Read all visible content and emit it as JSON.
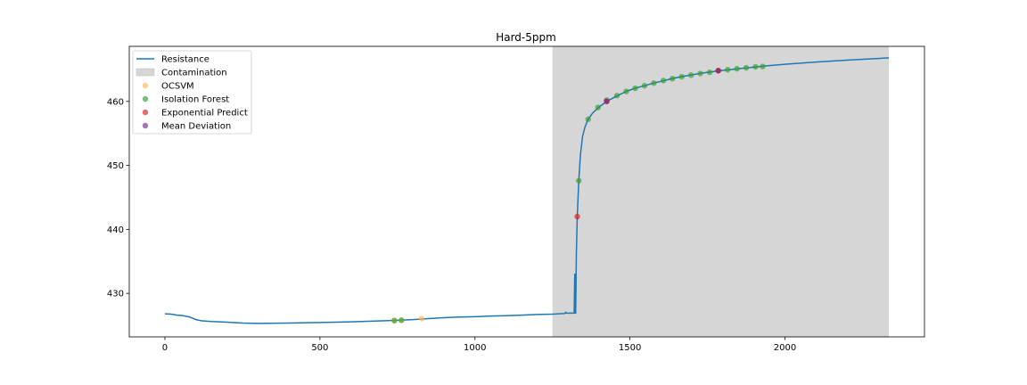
{
  "chart_data": {
    "type": "line",
    "title": "Hard-5ppm",
    "xlabel": "",
    "ylabel": "",
    "xlim": [
      -115,
      2450
    ],
    "ylim": [
      423.2,
      468.6
    ],
    "xticks": [
      0,
      500,
      1000,
      1500,
      2000
    ],
    "yticks": [
      430,
      440,
      450,
      460
    ],
    "grid": false,
    "legend_position": "top-left",
    "contamination": {
      "label": "Contamination",
      "x_start": 1250,
      "x_end": 2335,
      "color": "#d6d6d6"
    },
    "series": [
      {
        "name": "Resistance",
        "type": "line",
        "color": "#1f77b4",
        "points": [
          [
            0,
            426.8
          ],
          [
            20,
            426.75
          ],
          [
            40,
            426.6
          ],
          [
            60,
            426.5
          ],
          [
            80,
            426.3
          ],
          [
            100,
            425.9
          ],
          [
            120,
            425.7
          ],
          [
            150,
            425.6
          ],
          [
            200,
            425.5
          ],
          [
            250,
            425.35
          ],
          [
            300,
            425.3
          ],
          [
            400,
            425.35
          ],
          [
            500,
            425.45
          ],
          [
            600,
            425.55
          ],
          [
            700,
            425.7
          ],
          [
            750,
            425.8
          ],
          [
            800,
            425.9
          ],
          [
            850,
            426.05
          ],
          [
            900,
            426.2
          ],
          [
            950,
            426.3
          ],
          [
            1000,
            426.35
          ],
          [
            1050,
            426.45
          ],
          [
            1100,
            426.5
          ],
          [
            1150,
            426.6
          ],
          [
            1200,
            426.7
          ],
          [
            1250,
            426.75
          ],
          [
            1290,
            426.85
          ],
          [
            1292,
            427.05
          ],
          [
            1295,
            426.9
          ],
          [
            1300,
            426.9
          ],
          [
            1320,
            426.9
          ],
          [
            1322,
            433.0
          ],
          [
            1323,
            426.9
          ],
          [
            1325,
            426.9
          ],
          [
            1327,
            436.0
          ],
          [
            1330,
            442.0
          ],
          [
            1335,
            447.6
          ],
          [
            1340,
            451.5
          ],
          [
            1347,
            454.5
          ],
          [
            1355,
            456.0
          ],
          [
            1365,
            457.2
          ],
          [
            1380,
            458.2
          ],
          [
            1400,
            459.1
          ],
          [
            1425,
            460.0
          ],
          [
            1460,
            460.9
          ],
          [
            1490,
            461.6
          ],
          [
            1520,
            462.1
          ],
          [
            1550,
            462.5
          ],
          [
            1580,
            462.9
          ],
          [
            1610,
            463.25
          ],
          [
            1640,
            463.6
          ],
          [
            1670,
            463.9
          ],
          [
            1700,
            464.15
          ],
          [
            1730,
            464.4
          ],
          [
            1760,
            464.6
          ],
          [
            1790,
            464.8
          ],
          [
            1820,
            464.95
          ],
          [
            1850,
            465.1
          ],
          [
            1880,
            465.25
          ],
          [
            1910,
            465.4
          ],
          [
            1940,
            465.55
          ],
          [
            2000,
            465.8
          ],
          [
            2100,
            466.15
          ],
          [
            2200,
            466.45
          ],
          [
            2300,
            466.7
          ],
          [
            2335,
            466.8
          ]
        ]
      },
      {
        "name": "OCSVM",
        "type": "scatter",
        "color": "#ffb84d",
        "points": [
          [
            740,
            425.75
          ],
          [
            763,
            425.8
          ],
          [
            828,
            426.05
          ],
          [
            1425,
            460.0
          ],
          [
            1785,
            464.8
          ]
        ]
      },
      {
        "name": "Isolation Forest",
        "type": "scatter",
        "color": "#2ca02c",
        "points": [
          [
            740,
            425.75
          ],
          [
            763,
            425.8
          ],
          [
            1335,
            447.6
          ],
          [
            1365,
            457.2
          ],
          [
            1397,
            459.05
          ],
          [
            1425,
            460.2
          ],
          [
            1458,
            460.9
          ],
          [
            1488,
            461.55
          ],
          [
            1517,
            462.05
          ],
          [
            1547,
            462.45
          ],
          [
            1577,
            462.85
          ],
          [
            1608,
            463.25
          ],
          [
            1637,
            463.55
          ],
          [
            1667,
            463.85
          ],
          [
            1697,
            464.1
          ],
          [
            1727,
            464.35
          ],
          [
            1757,
            464.55
          ],
          [
            1785,
            464.8
          ],
          [
            1815,
            464.95
          ],
          [
            1845,
            465.1
          ],
          [
            1875,
            465.25
          ],
          [
            1905,
            465.4
          ],
          [
            1928,
            465.45
          ]
        ]
      },
      {
        "name": "Exponential Predict",
        "type": "scatter",
        "color": "#e31a1c",
        "points": [
          [
            1330,
            442.0
          ],
          [
            1425,
            460.0
          ],
          [
            1785,
            464.8
          ]
        ]
      },
      {
        "name": "Mean Deviation",
        "type": "scatter",
        "color": "#7b2a8e",
        "points": [
          [
            1425,
            460.0
          ],
          [
            1785,
            464.8
          ]
        ]
      }
    ]
  }
}
